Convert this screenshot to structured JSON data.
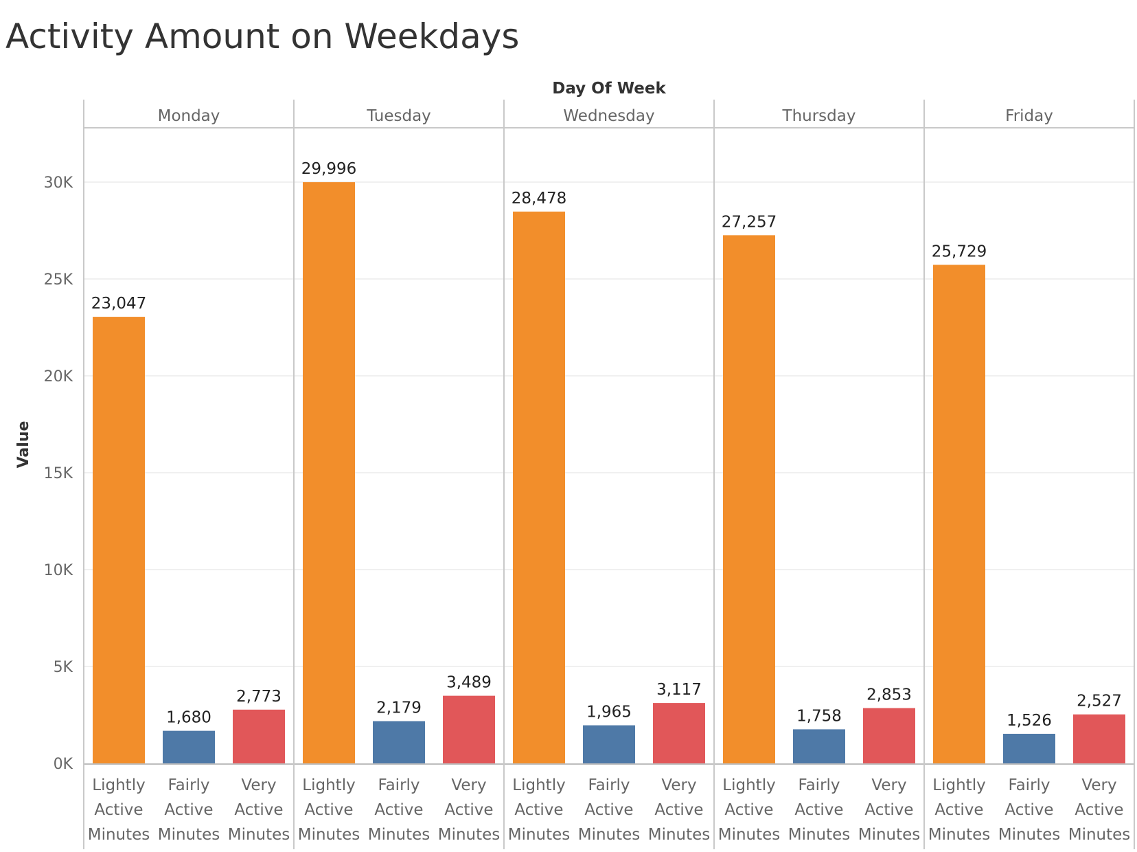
{
  "chart_data": {
    "type": "bar",
    "title": "Activity Amount on Weekdays",
    "column_header_title": "Day Of Week",
    "panels": [
      "Monday",
      "Tuesday",
      "Wednesday",
      "Thursday",
      "Friday"
    ],
    "categories": [
      "Lightly Active Minutes",
      "Fairly Active Minutes",
      "Very Active Minutes"
    ],
    "category_lines": [
      [
        "Lightly",
        "Active",
        "Minutes"
      ],
      [
        "Fairly",
        "Active",
        "Minutes"
      ],
      [
        "Very",
        "Active",
        "Minutes"
      ]
    ],
    "category_colors": [
      "#f28e2b",
      "#4e79a7",
      "#e15759"
    ],
    "values": [
      [
        23047,
        1680,
        2773
      ],
      [
        29996,
        2179,
        3489
      ],
      [
        28478,
        1965,
        3117
      ],
      [
        27257,
        1758,
        2853
      ],
      [
        25729,
        1526,
        2527
      ]
    ],
    "value_labels": [
      [
        "23,047",
        "1,680",
        "2,773"
      ],
      [
        "29,996",
        "2,179",
        "3,489"
      ],
      [
        "28,478",
        "1,965",
        "3,117"
      ],
      [
        "27,257",
        "1,758",
        "2,853"
      ],
      [
        "25,729",
        "1,526",
        "2,527"
      ]
    ],
    "ylabel": "Value",
    "ylim": [
      0,
      32500
    ],
    "yticks": [
      0,
      5000,
      10000,
      15000,
      20000,
      25000,
      30000
    ],
    "ytick_labels": [
      "0K",
      "5K",
      "10K",
      "15K",
      "20K",
      "25K",
      "30K"
    ],
    "grid": true,
    "legend": "none"
  }
}
